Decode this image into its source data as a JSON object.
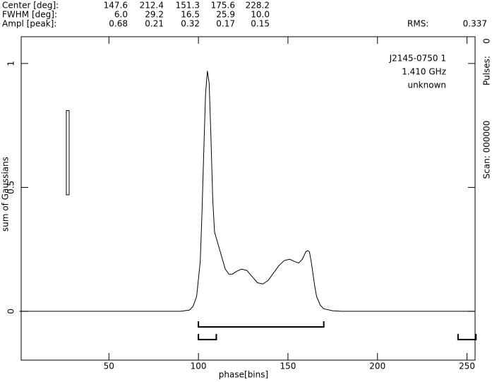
{
  "chart_data": {
    "type": "line",
    "table": {
      "rows": [
        {
          "label": "Center [deg]:",
          "values": [
            "147.6",
            "212.4",
            "151.3",
            "175.6",
            "228.2"
          ]
        },
        {
          "label": "FWHM [deg]:",
          "values": [
            "6.0",
            "29.2",
            "16.5",
            "25.9",
            "10.0"
          ]
        },
        {
          "label": "Ampl [peak]:",
          "values": [
            "0.68",
            "0.21",
            "0.32",
            "0.17",
            "0.15"
          ]
        }
      ],
      "rms_label": "RMS:",
      "rms": "0.337"
    },
    "annotations": [
      "J2145-0750 1",
      "1.410 GHz",
      "unknown"
    ],
    "side_texts": [
      "Pulses:",
      "0",
      "Scan: 000000"
    ],
    "xlabel": "phase[bins]",
    "ylabel": "sum of Gaussians",
    "xlim": [
      1,
      254.5
    ],
    "ylim": [
      -0.197,
      1.108
    ],
    "xticks": [
      50,
      100,
      150,
      200,
      250
    ],
    "yticks": [
      0,
      0.5,
      1
    ],
    "color": "#000000",
    "series": [
      {
        "x": [
          0,
          90,
          95,
          97,
          99,
          101,
          102,
          103,
          104,
          105,
          106,
          107,
          108,
          109,
          111,
          113,
          115,
          117,
          119,
          121,
          124,
          127,
          130,
          133,
          136,
          139,
          142,
          145,
          148,
          151,
          154,
          156,
          158,
          160,
          161,
          162,
          163,
          164,
          165,
          166,
          168,
          170,
          175,
          180,
          254
        ],
        "values": [
          0,
          0,
          0.005,
          0.02,
          0.06,
          0.2,
          0.4,
          0.65,
          0.88,
          0.97,
          0.92,
          0.7,
          0.45,
          0.32,
          0.27,
          0.22,
          0.17,
          0.15,
          0.15,
          0.16,
          0.17,
          0.165,
          0.14,
          0.115,
          0.11,
          0.125,
          0.155,
          0.185,
          0.205,
          0.21,
          0.2,
          0.195,
          0.21,
          0.24,
          0.245,
          0.24,
          0.2,
          0.15,
          0.1,
          0.06,
          0.025,
          0.01,
          0.002,
          0,
          0
        ]
      }
    ],
    "windows": [
      {
        "start": 100,
        "end": 170,
        "level": -0.063
      },
      {
        "start": 100,
        "end": 110,
        "level": -0.114
      },
      {
        "start": 245,
        "end": 255,
        "level": -0.114
      }
    ],
    "scale_bar": {
      "x": 27,
      "y_range": [
        0.47,
        0.81
      ]
    }
  }
}
